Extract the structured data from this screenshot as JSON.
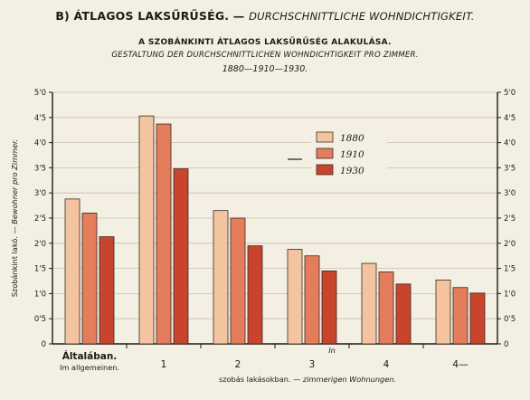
{
  "header": {
    "title_hu": "B) ÁTLAGOS LAKSŰRŰSÉG.",
    "title_sep": "—",
    "title_de": "DURCHSCHNITTLICHE WOHNDICHTIGKEIT.",
    "subtitle_hu": "A SZOBÁNKINTI ÁTLAGOS LAKSŰRŰSÉG ALAKULÁSA.",
    "subtitle_de": "GESTALTUNG DER DURCHSCHNITTLICHEN WOHNDICHTIGKEIT PRO ZIMMER.",
    "years": "1880—1910—1930."
  },
  "colors": {
    "background": "#f4efe3",
    "axis": "#1d1a16",
    "grid": "#c9c0b0",
    "series": [
      "#f4c4a0",
      "#e37d5c",
      "#c9442c"
    ]
  },
  "chart_data": {
    "type": "bar",
    "categories": [
      "Általában.",
      "1",
      "2",
      "3",
      "4",
      "4—"
    ],
    "category_sublabels": [
      "Im allgemeinen.",
      "",
      "",
      "",
      "",
      ""
    ],
    "series": [
      {
        "name": "1880",
        "values": [
          2.88,
          4.53,
          2.65,
          1.88,
          1.6,
          1.27
        ]
      },
      {
        "name": "1910",
        "values": [
          2.6,
          4.37,
          2.5,
          1.75,
          1.43,
          1.12
        ]
      },
      {
        "name": "1930",
        "values": [
          2.13,
          3.48,
          1.95,
          1.45,
          1.19,
          1.01
        ]
      }
    ],
    "ylim": [
      0,
      5
    ],
    "yticks": [
      "0",
      "0'5",
      "1'0",
      "1'5",
      "2'0",
      "2'5",
      "3'0",
      "3'5",
      "4'0",
      "4'5",
      "5'0"
    ],
    "ylabel_hu": "Szobánkint lakó.",
    "ylabel_sep": "—",
    "ylabel_de": "Bewohner pro Zimmer.",
    "xlabel_hu": "szobás lakásokban.",
    "xlabel_sep": "—",
    "xlabel_de": "zimmerigen Wohnungen.",
    "x_annotation": "In",
    "legend_position": "top-right",
    "grid": true
  }
}
